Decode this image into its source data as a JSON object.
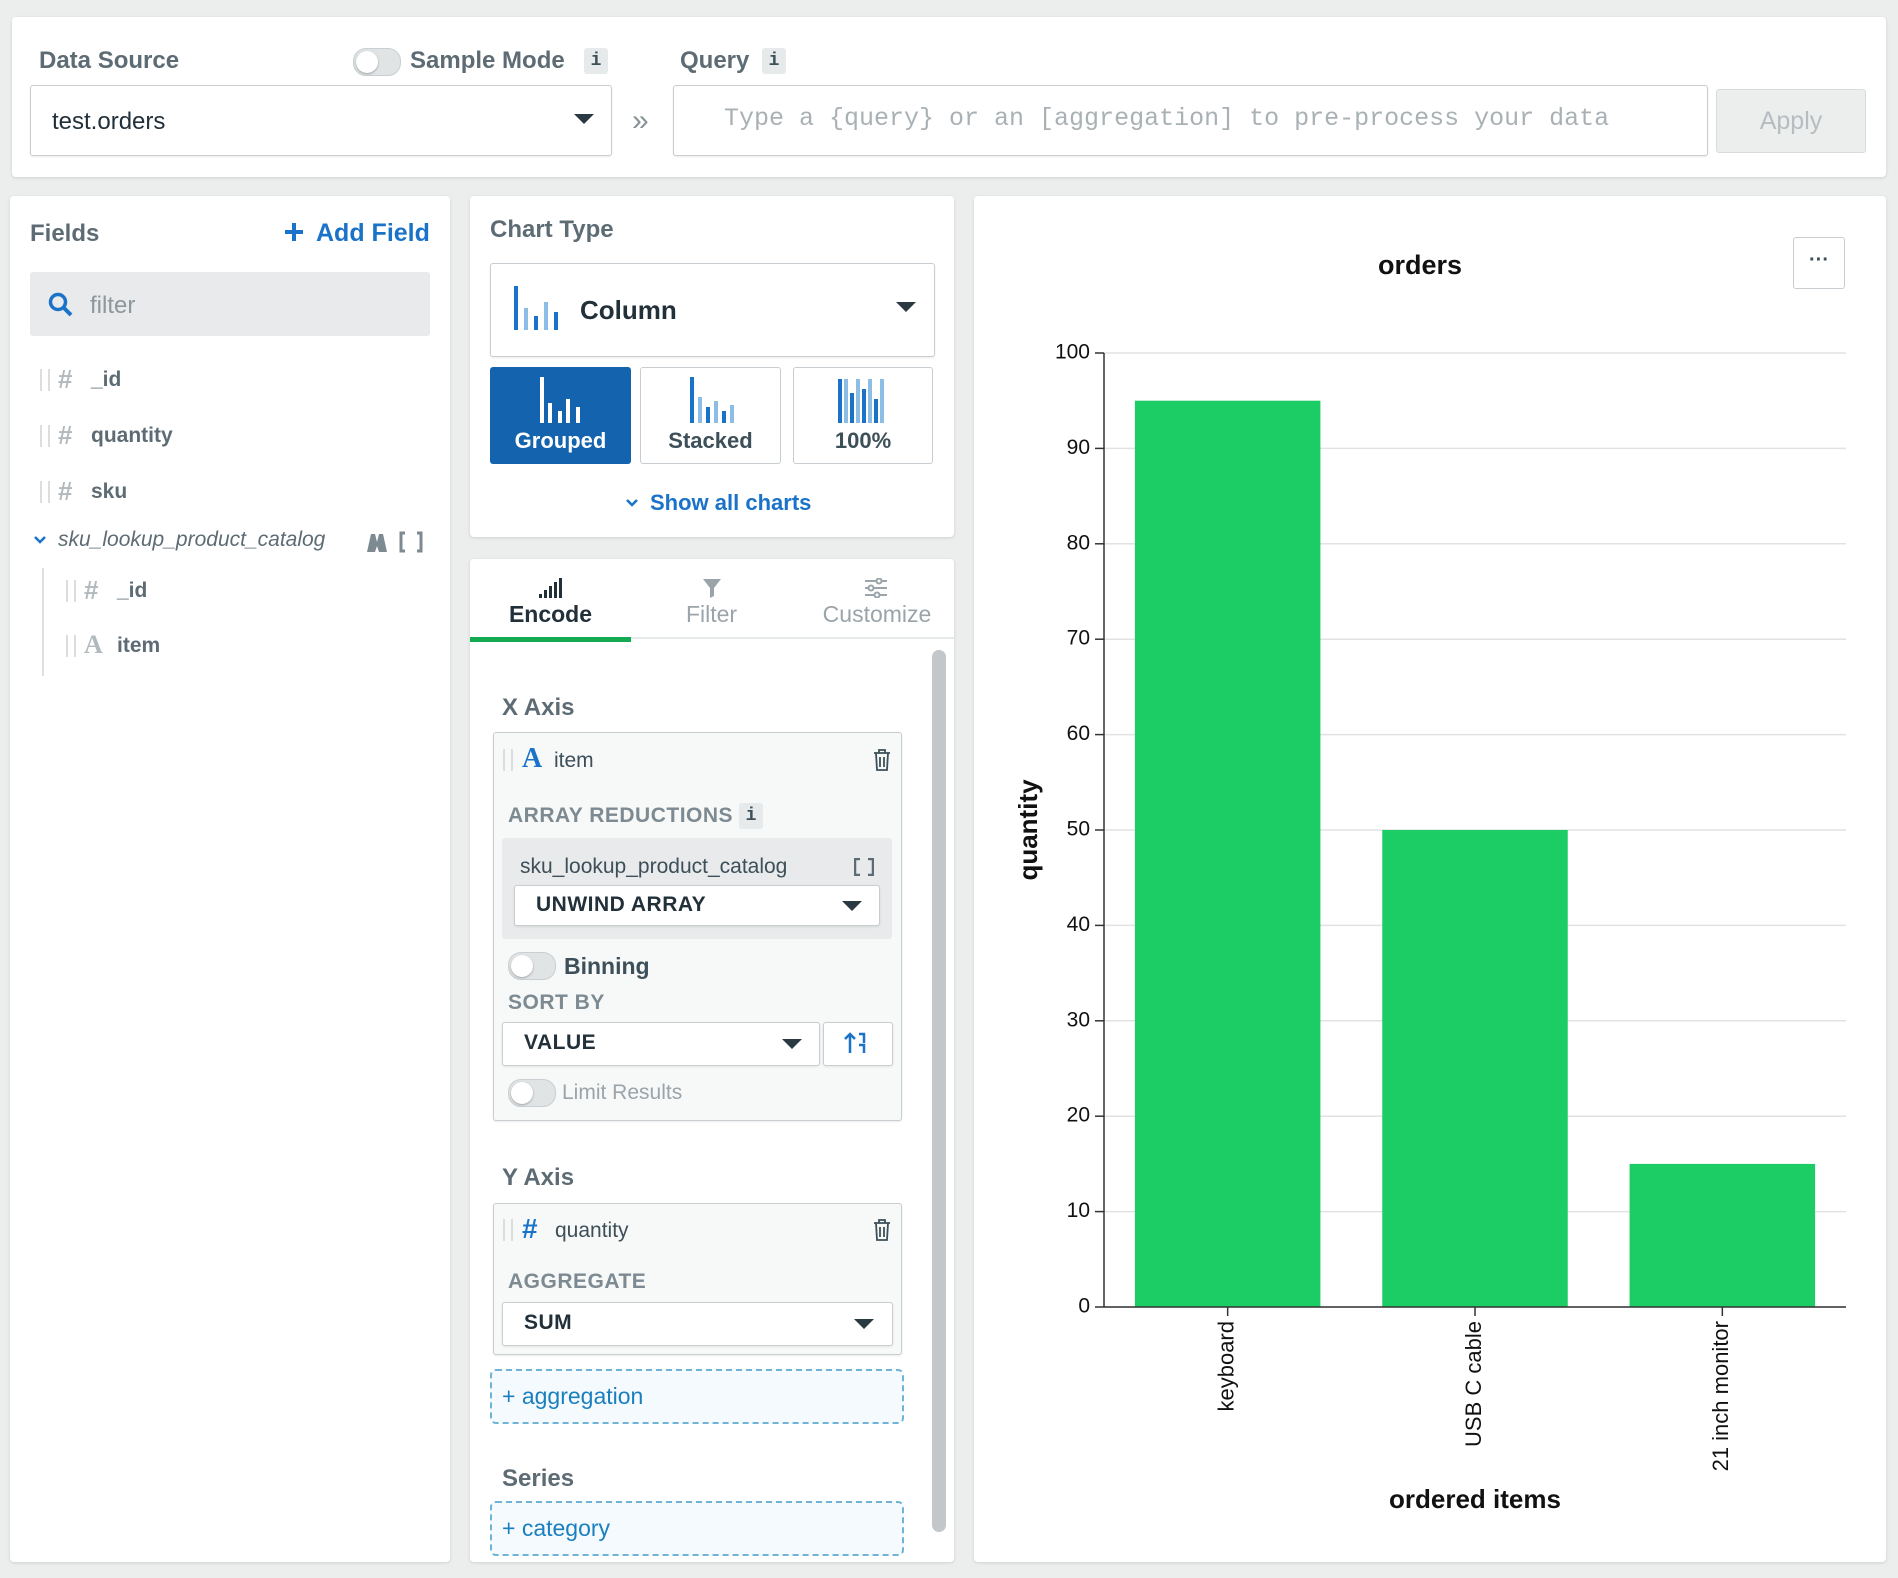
{
  "data_source": {
    "label": "Data Source",
    "value": "test.orders"
  },
  "sample_mode": {
    "label": "Sample Mode",
    "info": "i"
  },
  "query": {
    "label": "Query",
    "info": "i",
    "separator": "»",
    "placeholder": "Type a {query} or an [aggregation] to pre-process your data",
    "apply": "Apply"
  },
  "fields": {
    "title": "Fields",
    "add": "Add Field",
    "filter": "filter",
    "items": [
      {
        "icon": "#",
        "name": "_id"
      },
      {
        "icon": "#",
        "name": "quantity"
      },
      {
        "icon": "#",
        "name": "sku"
      }
    ],
    "lookup": {
      "name": "sku_lookup_product_catalog",
      "items": [
        {
          "icon": "#",
          "name": "_id"
        },
        {
          "icon": "A",
          "name": "item"
        }
      ]
    }
  },
  "chart_type": {
    "title": "Chart Type",
    "selected": "Column",
    "variants": [
      "Grouped",
      "Stacked",
      "100%"
    ],
    "show_all": "Show all charts"
  },
  "tabs": [
    "Encode",
    "Filter",
    "Customize"
  ],
  "x_axis": {
    "title": "X Axis",
    "icon": "A",
    "field": "item",
    "reductions_label": "ARRAY REDUCTIONS",
    "reductions_info": "i",
    "reduction_field": "sku_lookup_product_catalog",
    "reduction": "UNWIND ARRAY",
    "binning": "Binning",
    "sort_label": "SORT BY",
    "sort": "VALUE",
    "limit": "Limit Results"
  },
  "y_axis": {
    "title": "Y Axis",
    "icon": "#",
    "field": "quantity",
    "aggregate_label": "AGGREGATE",
    "aggregate": "SUM",
    "add": "+ aggregation"
  },
  "series": {
    "title": "Series",
    "add": "+ category"
  },
  "menu": "···",
  "chart_data": {
    "type": "bar",
    "title": "orders",
    "x_label": "ordered items",
    "y_label": "quantity",
    "categories": [
      "keyboard",
      "USB C cable",
      "21 inch monitor"
    ],
    "values": [
      95,
      50,
      15
    ],
    "color": "#1ccc64",
    "ylim": [
      0,
      100
    ],
    "yticks": [
      0,
      10,
      20,
      30,
      40,
      50,
      60,
      70,
      80,
      90,
      100
    ],
    "grid": true
  }
}
